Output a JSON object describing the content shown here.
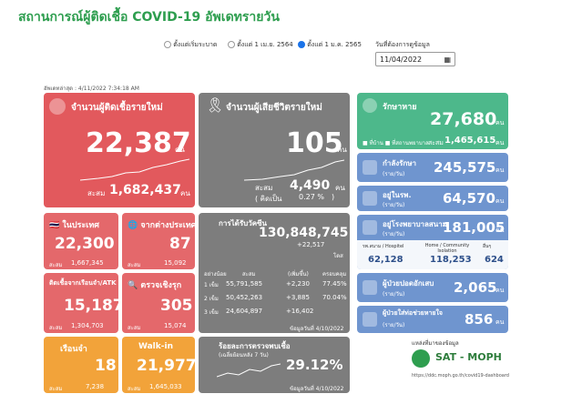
{
  "header": {
    "title": "สถานการณ์ผู้ติดเชื้อ COVID-19 อัพเดทรายวัน",
    "updated": "อัพเดทล่าสุด : 4/11/2022 7:34:18 AM"
  },
  "filters": {
    "options": [
      "ตั้งแต่เริ่มระบาด",
      "ตั้งแต่ 1 เม.ย. 2564",
      "ตั้งแต่ 1 ม.ค. 2565"
    ],
    "date_label": "วันที่ต้องการดูข้อมูล",
    "date": "11/04/2022"
  },
  "new_cases": {
    "title": "จำนวนผู้ติดเชื้อรายใหม่",
    "value": "22,387",
    "unit": "คน",
    "total_label": "สะสม",
    "total": "1,682,437",
    "total_unit": "คน"
  },
  "deaths": {
    "title": "จำนวนผู้เสียชีวิตรายใหม่",
    "value": "105",
    "unit": "คน",
    "total_label": "สะสม",
    "total": "4,490",
    "total_unit": "คน",
    "pct_open": "( คิดเป็น",
    "pct": "0.27 %",
    "pct_close": ")"
  },
  "recovered": {
    "title": "รักษาหาย",
    "value": "27,680",
    "unit": "คน",
    "legend": [
      "ที่บ้าน",
      "ที่สถานพยาบาล"
    ],
    "total_label": "สะสม",
    "total": "1,465,615",
    "total_unit": "คน"
  },
  "treating": {
    "title": "กำลังรักษา",
    "sub": "(ราย/วัน)",
    "value": "245,575",
    "unit": "คน"
  },
  "hospital": {
    "title": "อยู่ในรพ.",
    "sub": "(ราย/วัน)",
    "value": "64,570",
    "unit": "คน"
  },
  "field_hospital": {
    "title": "อยู่โรงพยาบาลสนาม",
    "sub": "(ราย/วัน)",
    "value": "181,005",
    "unit": "คน",
    "columns": [
      "รพ.สนาม / Hospitel",
      "Home / Community Isolation",
      "อื่นๆ"
    ],
    "values": [
      "62,128",
      "118,253",
      "624"
    ]
  },
  "pneumonia": {
    "title": "ผู้ป่วยปอดอักเสบ",
    "sub": "(ราย/วัน)",
    "value": "2,065",
    "unit": "คน"
  },
  "ventilator": {
    "title": "ผู้ป่วยใส่ท่อช่วยหายใจ",
    "sub": "(ราย/วัน)",
    "value": "856",
    "unit": "คน"
  },
  "domestic": {
    "title": "ในประเทศ",
    "value": "22,300",
    "total_label": "สะสม",
    "total": "1,667,345"
  },
  "imported": {
    "title": "จากต่างประเทศ",
    "value": "87",
    "total_label": "สะสม",
    "total": "15,092"
  },
  "atk": {
    "title": "ติดเชื้อจากเรือนจำ/ATK",
    "value": "15,187",
    "total_label": "สะสม",
    "total": "1,304,703"
  },
  "active": {
    "title": "ตรวจเชิงรุก",
    "value": "305",
    "total_label": "สะสม",
    "total": "15,074"
  },
  "prison": {
    "title": "เรือนจำ",
    "value": "18",
    "total_label": "สะสม",
    "total": "7,238"
  },
  "walkin": {
    "title": "Walk-in",
    "value": "21,977",
    "total_label": "สะสม",
    "total": "1,645,033"
  },
  "vaccine": {
    "title": "การได้รับวัคซีน",
    "total": "130,848,745",
    "increase": "+22,517",
    "unit": "โดส",
    "header": [
      "อย่างน้อย",
      "สะสม",
      "(เพิ่มขึ้น)",
      "ครอบคลุม"
    ],
    "rows": [
      [
        "1 เข็ม",
        "55,791,585",
        "+2,230",
        "77.45%"
      ],
      [
        "2 เข็ม",
        "50,452,263",
        "+3,885",
        "70.04%"
      ],
      [
        "3 เข็ม",
        "24,604,897",
        "+16,402",
        ""
      ]
    ],
    "date": "ข้อมูลวันที่ 4/10/2022"
  },
  "positivity": {
    "title": "ร้อยละการตรวจพบเชื้อ",
    "sub": "(เฉลี่ยย้อนหลัง 7 วัน)",
    "value": "29.12%",
    "date": "ข้อมูลวันที่ 4/10/2022"
  },
  "source": {
    "label": "แหล่งที่มาของข้อมูล",
    "name": "SAT - MOPH",
    "url": "https://ddc.moph.go.th/covid19-dashboard"
  }
}
